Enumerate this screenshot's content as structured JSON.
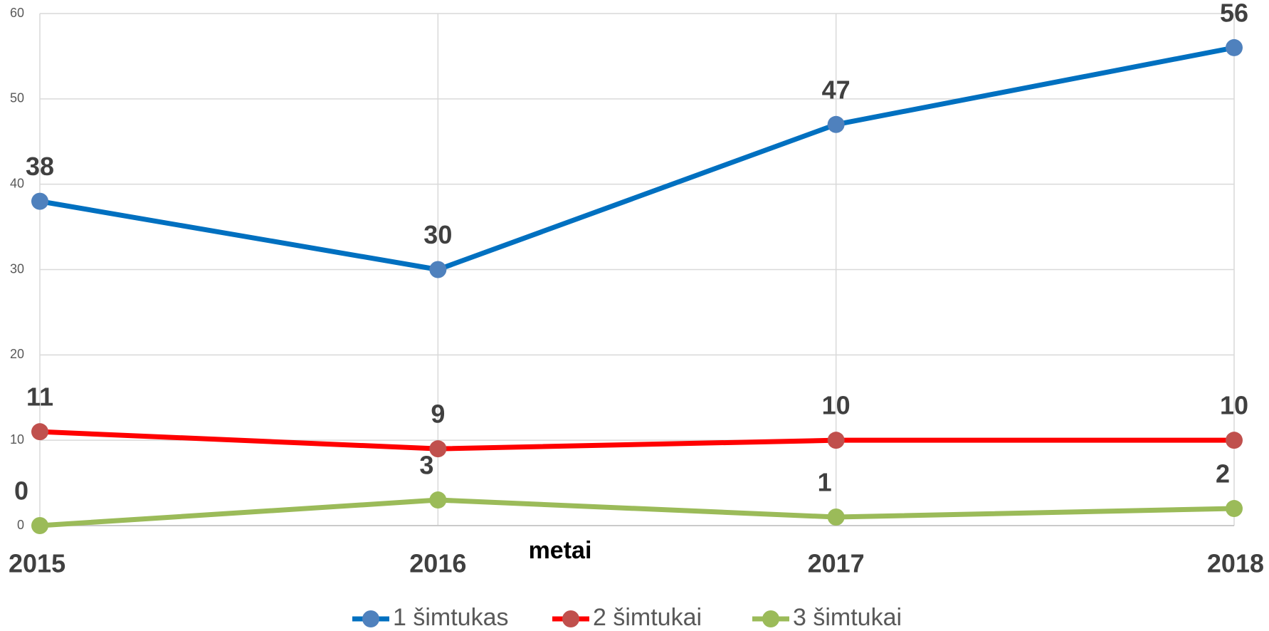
{
  "chart_data": {
    "type": "line",
    "x_label": "metai",
    "categories": [
      "2015",
      "2016",
      "2017",
      "2018"
    ],
    "series": [
      {
        "name": "1 šimtukas",
        "color": "#0070c0",
        "marker_color": "#4f81bd",
        "values": [
          38,
          30,
          47,
          56
        ]
      },
      {
        "name": "2 šimtukai",
        "color": "#ff0000",
        "marker_color": "#c0504d",
        "values": [
          11,
          9,
          10,
          10
        ]
      },
      {
        "name": "3 šimtukai",
        "color": "#9bbb59",
        "marker_color": "#9bbb59",
        "values": [
          0,
          3,
          1,
          2
        ]
      }
    ],
    "ylim": [
      0,
      60
    ],
    "yticks": [
      0,
      10,
      20,
      30,
      40,
      50,
      60
    ],
    "grid": true,
    "legend": "bottom"
  }
}
